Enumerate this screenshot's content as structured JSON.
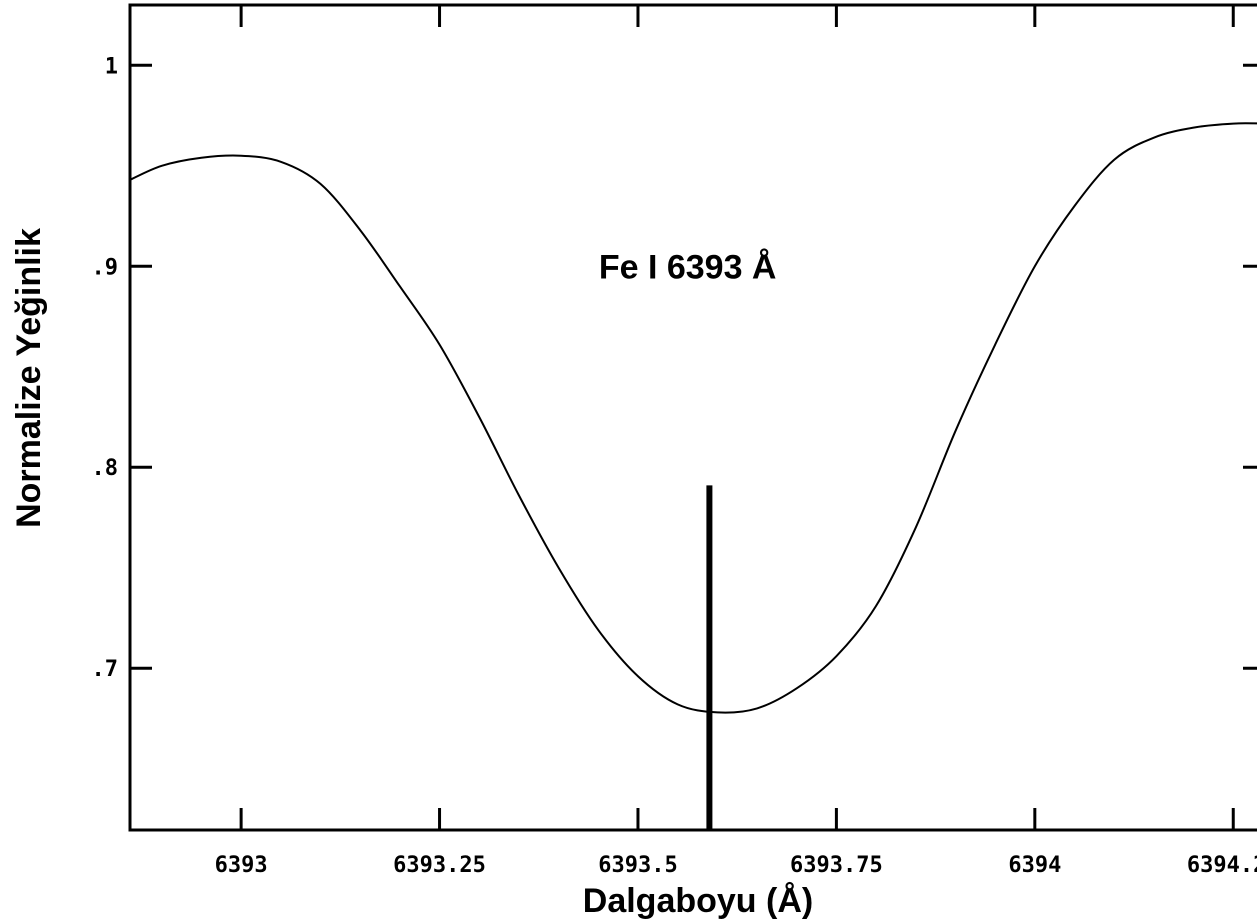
{
  "chart_data": {
    "type": "line",
    "title": "",
    "xlabel": "Dalgaboyu (Å)",
    "ylabel": "Normalize Yeğinlik",
    "xlim": [
      6392.86,
      6394.29
    ],
    "ylim": [
      0.6195,
      1.03
    ],
    "x_ticks": [
      {
        "value": 6393,
        "label": "6393"
      },
      {
        "value": 6393.25,
        "label": "6393.25"
      },
      {
        "value": 6393.5,
        "label": "6393.5"
      },
      {
        "value": 6393.75,
        "label": "6393.75"
      },
      {
        "value": 6394,
        "label": "6394"
      },
      {
        "value": 6394.25,
        "label": "6394.25"
      }
    ],
    "y_ticks": [
      {
        "value": 1.0,
        "label": "1"
      },
      {
        "value": 0.9,
        "label": ".9"
      },
      {
        "value": 0.8,
        "label": ".8"
      },
      {
        "value": 0.7,
        "label": ".7"
      }
    ],
    "grid": false,
    "series": [
      {
        "color": "#000000",
        "x": [
          6392.86,
          6392.9,
          6392.95,
          6393.0,
          6393.05,
          6393.1,
          6393.15,
          6393.2,
          6393.25,
          6393.3,
          6393.35,
          6393.4,
          6393.45,
          6393.5,
          6393.55,
          6393.6,
          6393.65,
          6393.7,
          6393.75,
          6393.8,
          6393.85,
          6393.9,
          6393.95,
          6394.0,
          6394.05,
          6394.1,
          6394.15,
          6394.2,
          6394.25,
          6394.29
        ],
        "y": [
          0.943,
          0.95,
          0.954,
          0.955,
          0.952,
          0.941,
          0.918,
          0.89,
          0.861,
          0.825,
          0.786,
          0.75,
          0.719,
          0.696,
          0.682,
          0.678,
          0.68,
          0.69,
          0.706,
          0.731,
          0.77,
          0.818,
          0.861,
          0.9,
          0.93,
          0.953,
          0.964,
          0.969,
          0.971,
          0.971
        ]
      }
    ],
    "annotations": [
      {
        "text": "Fe I 6393 Å",
        "x": 6393.55,
        "y": 0.9
      },
      {
        "type": "vline",
        "x": 6393.59,
        "y_from": 0.6195,
        "y_to": 0.791,
        "color": "#000000"
      }
    ]
  }
}
